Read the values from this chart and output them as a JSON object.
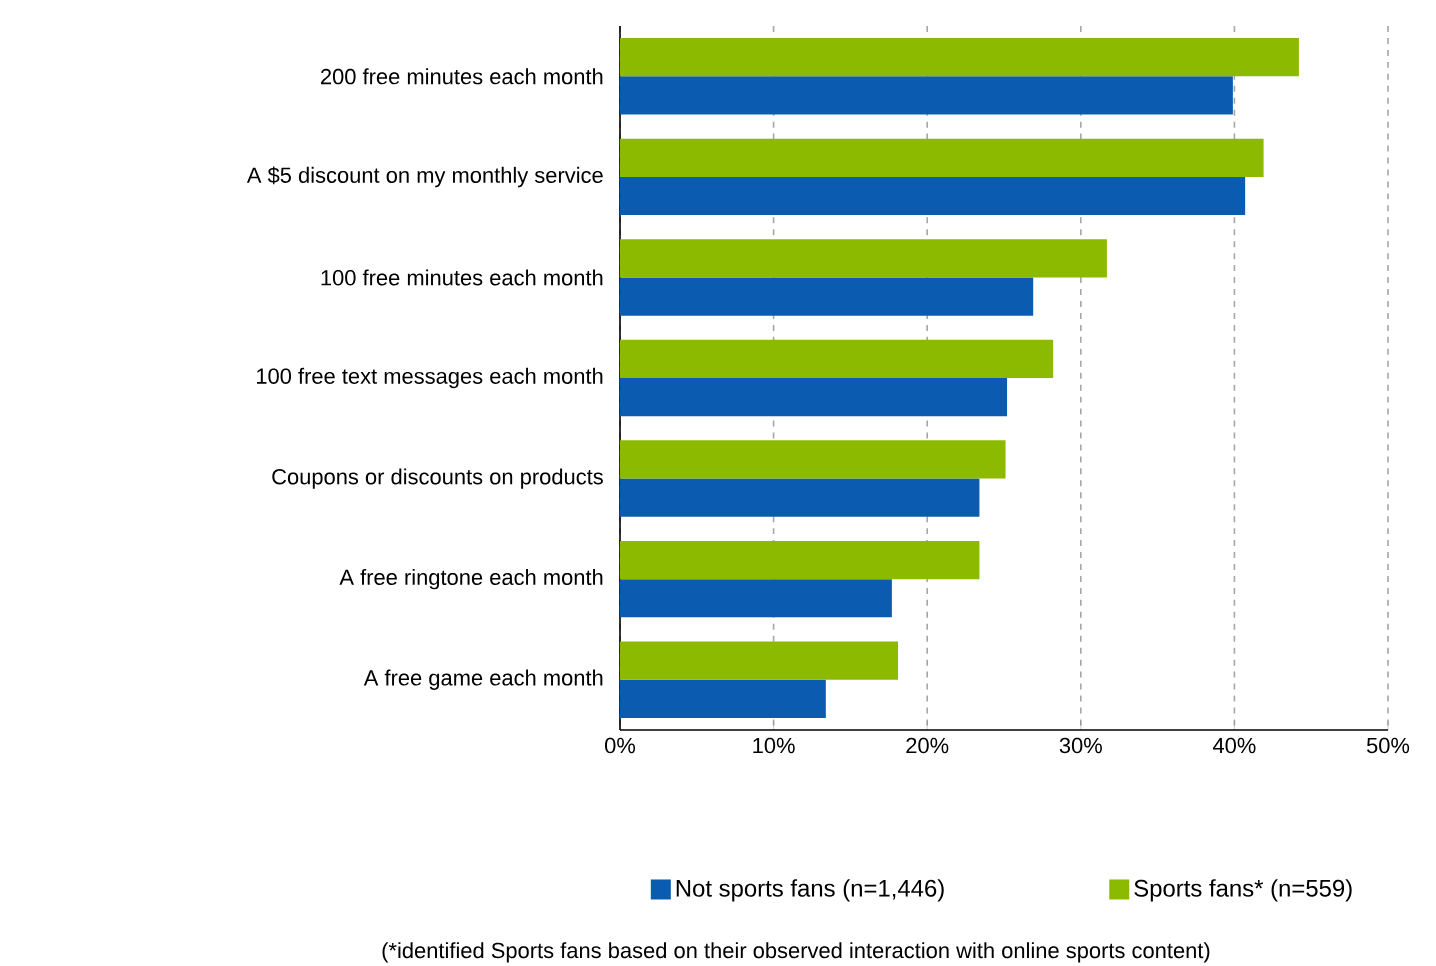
{
  "chart_data": {
    "type": "bar",
    "orientation": "horizontal",
    "categories": [
      "200 free minutes each month",
      "A $5 discount on my monthly service",
      "100 free minutes each month",
      "100 free text messages each month",
      "Coupons or discounts on products",
      "A free ringtone each month",
      "A free game each month"
    ],
    "series": [
      {
        "name": "Not sports fans (n=1,446)",
        "color": "#0b5cb0",
        "values": [
          39.9,
          40.7,
          26.9,
          25.2,
          23.4,
          17.7,
          13.4
        ]
      },
      {
        "name": "Sports fans* (n=559)",
        "color": "#8cba00",
        "values": [
          44.2,
          41.9,
          31.7,
          28.2,
          25.1,
          23.4,
          18.1
        ]
      }
    ],
    "xlim": [
      0,
      50
    ],
    "xticks": [
      {
        "value": 0,
        "label": "0%"
      },
      {
        "value": 10,
        "label": "10%"
      },
      {
        "value": 20,
        "label": "20%"
      },
      {
        "value": 30,
        "label": "30%"
      },
      {
        "value": 40,
        "label": "40%"
      },
      {
        "value": 50,
        "label": "50%"
      }
    ],
    "grid": "x",
    "legend": "bottom",
    "annotations": [
      "(*identified Sports fans based on their observed interaction with online sports content)"
    ]
  }
}
